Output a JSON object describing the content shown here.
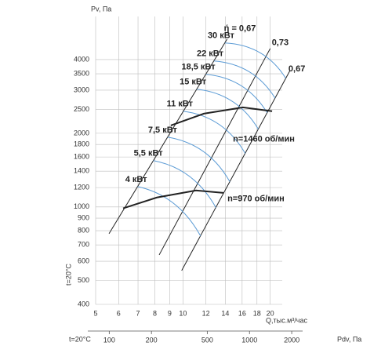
{
  "chart_data": {
    "type": "line",
    "xscale": "log",
    "yscale": "log",
    "x2scale": "log",
    "ylabel": "Pv, Па",
    "xlabel": "Q,тыс.м³/час",
    "x2label": "Pdv, Па",
    "side_note": "t=20°C",
    "x2_note": "t=20°C",
    "xlim": [
      5,
      22
    ],
    "xticks": [
      5,
      6,
      7,
      8,
      9,
      10,
      12,
      14,
      16,
      18,
      20
    ],
    "ylim": [
      400,
      6000
    ],
    "yticks": [
      400,
      500,
      600,
      700,
      800,
      900,
      1000,
      1200,
      1400,
      1600,
      1800,
      2000,
      2500,
      3000,
      3500,
      4000
    ],
    "x2lim": [
      80,
      2050
    ],
    "x2ticks": [
      100,
      200,
      500,
      1000,
      2000
    ],
    "grid": true,
    "grid_color": "#bdbdbd",
    "power_curves": [
      {
        "name": "4 кВт",
        "color": "#5b9bd5",
        "x": [
          6.98,
          9.29,
          11.5
        ],
        "values": [
          1211,
          1034,
          761
        ]
      },
      {
        "name": "5,5 кВт",
        "color": "#5b9bd5",
        "x": [
          7.91,
          10.52,
          12.99
        ],
        "values": [
          1546,
          1335,
          994
        ]
      },
      {
        "name": "7,5 кВт",
        "color": "#5b9bd5",
        "x": [
          8.86,
          11.77,
          14.51
        ],
        "values": [
          1928,
          1684,
          1268
        ]
      },
      {
        "name": "11 кВт",
        "color": "#5b9bd5",
        "x": [
          10.04,
          13.32,
          16.39
        ],
        "values": [
          2460,
          2174,
          1656
        ]
      },
      {
        "name": "15 кВт",
        "color": "#5b9bd5",
        "x": [
          11.17,
          14.8,
          18.19
        ],
        "values": [
          3025,
          2700,
          2079
        ]
      },
      {
        "name": "18,5 кВт",
        "color": "#5b9bd5",
        "x": [
          12.0,
          15.88,
          19.51
        ],
        "values": [
          3481,
          3127,
          2427
        ]
      },
      {
        "name": "22 кВт",
        "color": "#5b9bd5",
        "x": [
          12.8,
          16.93,
          20.78
        ],
        "values": [
          3947,
          3566,
          2784
        ]
      },
      {
        "name": "30 кВт",
        "color": "#5b9bd5",
        "x": [
          13.96,
          18.45,
          22.62
        ],
        "values": [
          4677,
          4265,
          3355
        ]
      }
    ],
    "speed_curves": [
      {
        "name": "n=970 об/мин",
        "color": "#222222",
        "x": [
          6.22,
          8.13,
          11.1,
          13.8
        ],
        "values": [
          987,
          1093,
          1168,
          1142
        ]
      },
      {
        "name": "n=1460 об/мин",
        "color": "#222222",
        "x": [
          9.08,
          11.8,
          16.1,
          20.3
        ],
        "values": [
          2153,
          2405,
          2552,
          2461
        ]
      }
    ],
    "efficiency_lines": [
      {
        "name": "ή = 0,67",
        "color": "#222222",
        "x": [
          5.56,
          14.2
        ],
        "values": [
          778,
          4850
        ]
      },
      {
        "name": "0,73",
        "color": "#222222",
        "x": [
          8.28,
          20.0
        ],
        "values": [
          637,
          4440
        ]
      },
      {
        "name": "0,67",
        "color": "#222222",
        "x": [
          9.9,
          23.4
        ],
        "values": [
          550,
          3610
        ]
      }
    ]
  }
}
